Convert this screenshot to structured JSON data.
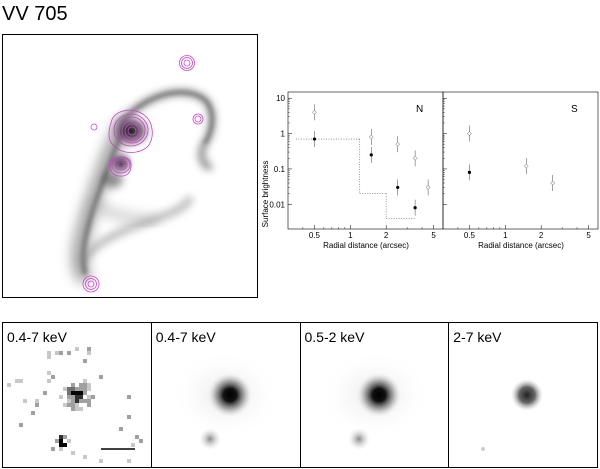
{
  "figure": {
    "title": "VV 705"
  },
  "profile": {
    "ylabel": "Surface brightness",
    "panels": [
      {
        "letter": "N",
        "xlabel": "Radial distance (arcsec)",
        "xticks": [
          "0.5",
          "1",
          "2",
          "5"
        ]
      },
      {
        "letter": "S",
        "xlabel": "Radial distance (arcsec)",
        "xticks": [
          "0.5",
          "1",
          "2",
          "5"
        ]
      }
    ],
    "yticks": [
      "10",
      "1",
      "0.1",
      "0.01"
    ]
  },
  "chart_data": [
    {
      "type": "scatter",
      "title": "N",
      "xlabel": "Radial distance (arcsec)",
      "ylabel": "Surface brightness",
      "xscale": "log",
      "yscale": "log",
      "xlim": [
        0.3,
        6
      ],
      "ylim": [
        0.002,
        15
      ],
      "series": [
        {
          "marker": "open-diamond",
          "points": [
            {
              "x": 0.5,
              "y": 4.0
            },
            {
              "x": 1.5,
              "y": 0.8
            },
            {
              "x": 2.5,
              "y": 0.5
            },
            {
              "x": 3.5,
              "y": 0.2
            },
            {
              "x": 4.5,
              "y": 0.03
            }
          ]
        },
        {
          "marker": "filled-dot",
          "points": [
            {
              "x": 0.5,
              "y": 0.7
            },
            {
              "x": 1.5,
              "y": 0.25
            },
            {
              "x": 2.5,
              "y": 0.03
            },
            {
              "x": 3.5,
              "y": 0.008
            }
          ]
        }
      ],
      "steps": [
        {
          "x0": 0.35,
          "x1": 1.2,
          "y": 0.7
        },
        {
          "x0": 1.2,
          "x1": 2.0,
          "y": 0.02
        },
        {
          "x0": 2.0,
          "x1": 3.5,
          "y": 0.004
        }
      ]
    },
    {
      "type": "scatter",
      "title": "S",
      "xlabel": "Radial distance (arcsec)",
      "xscale": "log",
      "yscale": "log",
      "xlim": [
        0.3,
        6
      ],
      "ylim": [
        0.002,
        15
      ],
      "series": [
        {
          "marker": "open-diamond",
          "points": [
            {
              "x": 0.5,
              "y": 1.0
            },
            {
              "x": 1.5,
              "y": 0.12
            },
            {
              "x": 2.5,
              "y": 0.04
            }
          ]
        },
        {
          "marker": "filled-dot",
          "points": [
            {
              "x": 0.5,
              "y": 0.08
            }
          ]
        }
      ]
    }
  ],
  "xray_panels": [
    {
      "label": "0.4-7 keV"
    },
    {
      "label": "0.4-7 keV"
    },
    {
      "label": "0.5-2 keV"
    },
    {
      "label": "2-7 keV"
    }
  ],
  "colors": {
    "contour": "#cc44cc",
    "galaxy": "#555555"
  }
}
